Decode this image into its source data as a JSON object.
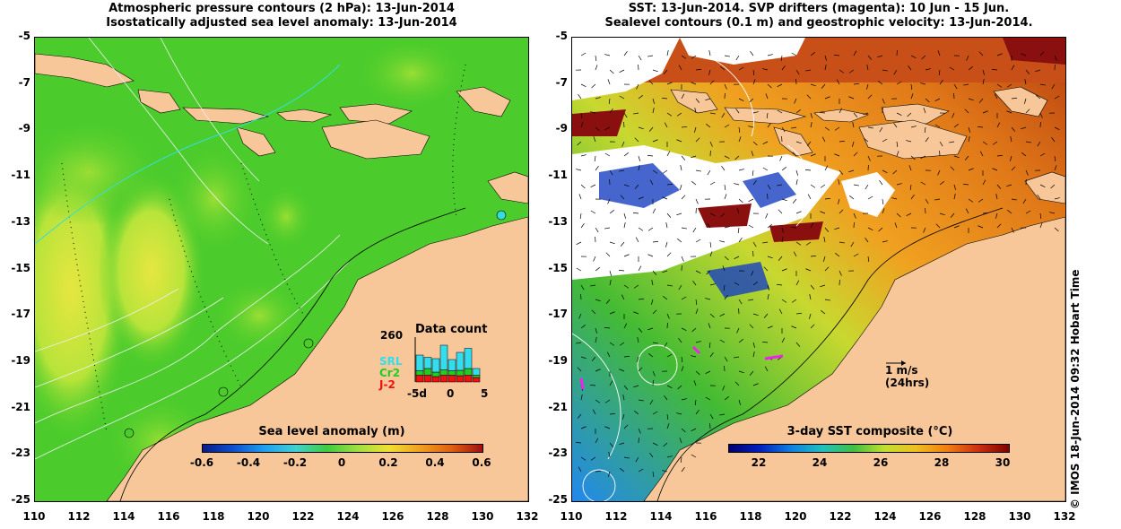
{
  "left_panel": {
    "title_line1": "Atmospheric pressure contours (2 hPa): 13-Jun-2014",
    "title_line2": "Isostatically adjusted sea level anomaly: 13-Jun-2014",
    "colorbar_title": "Sea level anomaly (m)",
    "colorbar_ticks": [
      "-0.6",
      "-0.4",
      "-0.2",
      "0",
      "0.2",
      "0.4",
      "0.6"
    ],
    "inset": {
      "title": "Data count",
      "max_label": "260",
      "series": [
        {
          "name": "SRL",
          "color": "#33ddee"
        },
        {
          "name": "Cr2",
          "color": "#22cc22"
        },
        {
          "name": "J-2",
          "color": "#ee1111"
        }
      ],
      "xticks": [
        "-5d",
        "0",
        "5"
      ],
      "bars": [
        {
          "j2": 0.15,
          "cr2": 0.1,
          "srl": 0.35
        },
        {
          "j2": 0.15,
          "cr2": 0.15,
          "srl": 0.25
        },
        {
          "j2": 0.12,
          "cr2": 0.1,
          "srl": 0.3
        },
        {
          "j2": 0.15,
          "cr2": 0.12,
          "srl": 0.55
        },
        {
          "j2": 0.15,
          "cr2": 0.1,
          "srl": 0.25
        },
        {
          "j2": 0.14,
          "cr2": 0.12,
          "srl": 0.4
        },
        {
          "j2": 0.15,
          "cr2": 0.15,
          "srl": 0.45
        },
        {
          "j2": 0.1,
          "cr2": 0.05,
          "srl": 0.15
        }
      ]
    }
  },
  "right_panel": {
    "title_line1": "SST: 13-Jun-2014. SVP drifters (magenta): 10 Jun - 15 Jun.",
    "title_line2": "Sealevel contours (0.1 m) and geostrophic velocity: 13-Jun-2014.",
    "colorbar_title": "3-day SST composite (°C)",
    "colorbar_ticks": [
      "22",
      "24",
      "26",
      "28",
      "30"
    ],
    "velocity_scale_label1": "1 m/s",
    "velocity_scale_label2": "(24hrs)"
  },
  "axes": {
    "y_ticks": [
      "-5",
      "-7",
      "-9",
      "-11",
      "-13",
      "-15",
      "-17",
      "-19",
      "-21",
      "-23",
      "-25"
    ],
    "x_ticks": [
      "110",
      "112",
      "114",
      "116",
      "118",
      "120",
      "122",
      "124",
      "126",
      "128",
      "130",
      "132"
    ]
  },
  "side_label": "© IMOS 18-Jun-2014 09:32 Hobart Time",
  "colors": {
    "land": "#f7c79a",
    "sla_base": "#4ccc2c",
    "sla_high": "#c8ea3a",
    "sst_warm": "#e07818",
    "sst_hot": "#b84010",
    "sst_cool": "#44bb33",
    "sst_cold": "#2288ee"
  }
}
